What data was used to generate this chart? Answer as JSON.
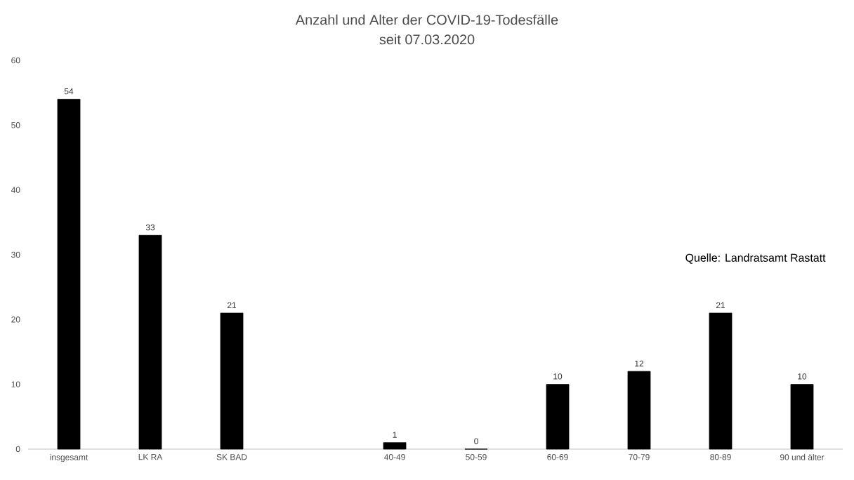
{
  "chart_data": {
    "type": "bar",
    "title": "Anzahl und Alter der COVID-19-Todesfälle",
    "subtitle": "seit 07.03.2020",
    "categories": [
      "insgesamt",
      "LK RA",
      "SK BAD",
      null,
      "40-49",
      "50-59",
      "60-69",
      "70-79",
      "80-89",
      "90 und älter"
    ],
    "values": [
      54,
      33,
      21,
      null,
      1,
      0,
      10,
      12,
      21,
      10
    ],
    "color": "#000000",
    "ylim": [
      0,
      60
    ],
    "yticks": [
      0,
      10,
      20,
      30,
      40,
      50,
      60
    ],
    "data_labels": true,
    "annotations": [
      "Quelle: Landratsamt Rastatt"
    ]
  }
}
